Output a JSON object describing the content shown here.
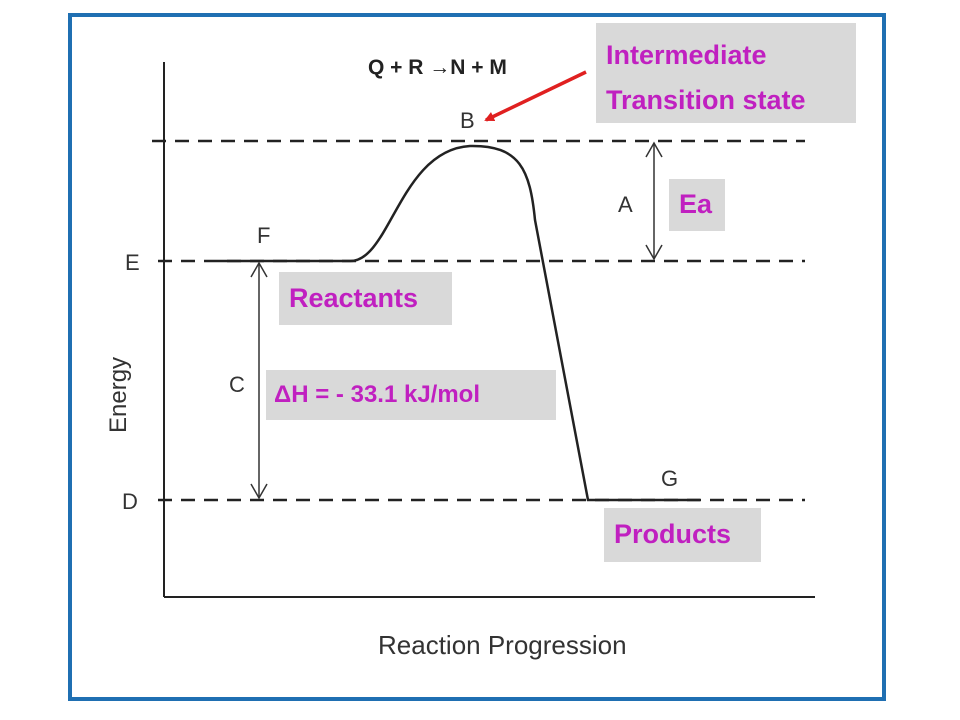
{
  "equation": "Q + R →N + M",
  "axes": {
    "y_label": "Energy",
    "x_label": "Reaction Progression"
  },
  "points": {
    "A": "A",
    "B": "B",
    "C": "C",
    "D": "D",
    "E": "E",
    "F": "F",
    "G": "G"
  },
  "callouts": {
    "transition_line1": "Intermediate",
    "transition_line2": "Transition state",
    "activation_energy": "Ea",
    "reactants": "Reactants",
    "enthalpy": "ΔH = - 33.1 kJ/mol",
    "products": "Products"
  },
  "colors": {
    "frame_border": "#1f6fb2",
    "callout_text": "#c020c0",
    "callout_bg": "#d9d9d9",
    "arrow": "#e02020",
    "curve": "#222222"
  }
}
